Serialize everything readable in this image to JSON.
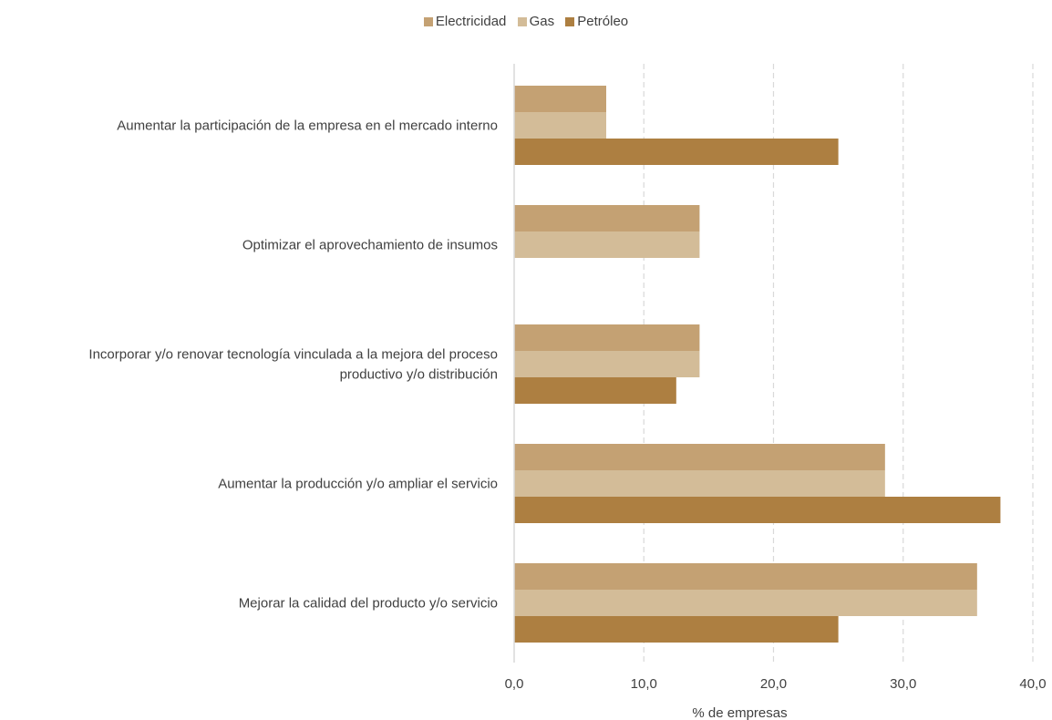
{
  "chart_data": {
    "type": "bar",
    "orientation": "horizontal",
    "categories": [
      "Aumentar la participación de la empresa en el mercado interno",
      "Optimizar el aprovechamiento de insumos",
      "Incorporar y/o renovar tecnología vinculada a la mejora del proceso productivo y/o distribución",
      "Aumentar la producción y/o ampliar el servicio",
      "Mejorar la calidad del producto y/o servicio"
    ],
    "category_lines": [
      [
        "Aumentar la participación de la empresa en el mercado interno"
      ],
      [
        "Optimizar el aprovechamiento de insumos"
      ],
      [
        "Incorporar y/o renovar tecnología vinculada a la mejora del proceso",
        "productivo y/o distribución"
      ],
      [
        "Aumentar la producción y/o ampliar el servicio"
      ],
      [
        "Mejorar la calidad del producto y/o servicio"
      ]
    ],
    "series": [
      {
        "name": "Electricidad",
        "color": "#c4a173",
        "values": [
          7.1,
          14.3,
          14.3,
          28.6,
          35.7
        ]
      },
      {
        "name": "Gas",
        "color": "#d3bc98",
        "values": [
          7.1,
          14.3,
          14.3,
          28.6,
          35.7
        ]
      },
      {
        "name": "Petróleo",
        "color": "#ad7f41",
        "values": [
          25.0,
          0,
          12.5,
          37.5,
          25.0
        ]
      }
    ],
    "xlabel": "% de empresas",
    "ylabel": "",
    "xlim": [
      0,
      40
    ],
    "ticks": [
      0,
      10,
      20,
      30,
      40
    ],
    "tick_labels": [
      "0,0",
      "10,0",
      "20,0",
      "30,0",
      "40,0"
    ],
    "grid": "vertical dashed",
    "legend": "top-center"
  }
}
